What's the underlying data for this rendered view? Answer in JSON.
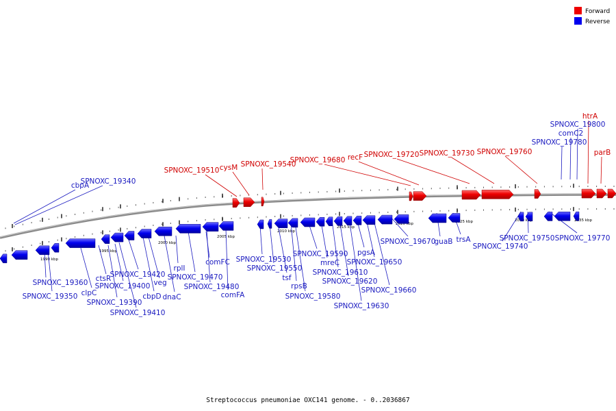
{
  "caption": "Streptococcus pneumoniae OXC141 genome. - 0..2036867",
  "legend": [
    {
      "label": "Forward",
      "color": "#ee0000"
    },
    {
      "label": "Reverse",
      "color": "#0000ee"
    }
  ],
  "kbp_labels": [
    "1990 kbp",
    "1995 kbp",
    "2000 kbp",
    "2005 kbp",
    "2010 kbp",
    "2015 kbp",
    "2020 kbp",
    "2025 kbp",
    "2030 kbp",
    "2035 kbp"
  ],
  "forward_labels": [
    "SPNOXC_19510",
    "cysM",
    "SPNOXC_19540",
    "SPNOXC_19680",
    "recF",
    "SPNOXC_19720",
    "SPNOXC_19730",
    "SPNOXC_19760",
    "htrA",
    "parB"
  ],
  "reverse_labels": [
    "cbpA",
    "SPNOXC_19340",
    "SPNOXC_19360",
    "SPNOXC_19350",
    "clpC",
    "ctsR",
    "SPNOXC_19400",
    "SPNOXC_19390",
    "SPNOXC_19420",
    "SPNOXC_19410",
    "cbpD",
    "veg",
    "dnaC",
    "rplI",
    "SPNOXC_19470",
    "SPNOXC_19480",
    "comFC",
    "comFA",
    "SPNOXC_19530",
    "SPNOXC_19550",
    "tsf",
    "rpsB",
    "SPNOXC_19580",
    "SPNOXC_19590",
    "mreC",
    "SPNOXC_19610",
    "SPNOXC_19620",
    "SPNOXC_19630",
    "pgsA",
    "SPNOXC_19650",
    "SPNOXC_19660",
    "SPNOXC_19670",
    "guaB",
    "trsA",
    "SPNOXC_19740",
    "SPNOXC_19750",
    "SPNOXC_19770",
    "SPNOXC_19780",
    "comC2",
    "SPNOXC_19800"
  ]
}
